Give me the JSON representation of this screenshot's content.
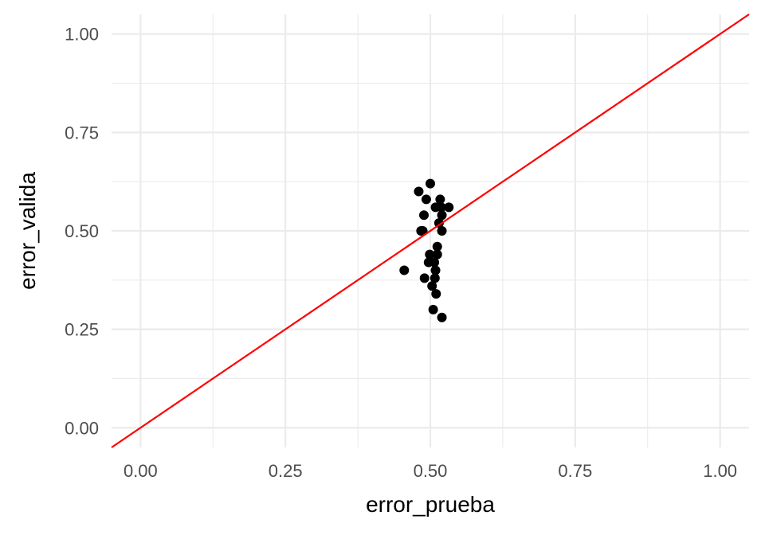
{
  "chart_data": {
    "type": "scatter",
    "title": "",
    "xlabel": "error_prueba",
    "ylabel": "error_valida",
    "xlim": [
      -0.05,
      1.05
    ],
    "ylim": [
      -0.05,
      1.05
    ],
    "x_ticks": [
      0.0,
      0.25,
      0.5,
      0.75,
      1.0
    ],
    "y_ticks": [
      0.0,
      0.25,
      0.5,
      0.75,
      1.0
    ],
    "x_tick_labels": [
      "0.00",
      "0.25",
      "0.50",
      "0.75",
      "1.00"
    ],
    "y_tick_labels": [
      "0.00",
      "0.25",
      "0.50",
      "0.75",
      "1.00"
    ],
    "grid": true,
    "points": [
      {
        "x": 0.5,
        "y": 0.62
      },
      {
        "x": 0.48,
        "y": 0.6
      },
      {
        "x": 0.493,
        "y": 0.58
      },
      {
        "x": 0.517,
        "y": 0.58
      },
      {
        "x": 0.509,
        "y": 0.56
      },
      {
        "x": 0.519,
        "y": 0.56
      },
      {
        "x": 0.532,
        "y": 0.56
      },
      {
        "x": 0.489,
        "y": 0.54
      },
      {
        "x": 0.52,
        "y": 0.54
      },
      {
        "x": 0.515,
        "y": 0.52
      },
      {
        "x": 0.484,
        "y": 0.5
      },
      {
        "x": 0.487,
        "y": 0.5
      },
      {
        "x": 0.52,
        "y": 0.5
      },
      {
        "x": 0.512,
        "y": 0.46
      },
      {
        "x": 0.499,
        "y": 0.44
      },
      {
        "x": 0.512,
        "y": 0.44
      },
      {
        "x": 0.497,
        "y": 0.42
      },
      {
        "x": 0.507,
        "y": 0.42
      },
      {
        "x": 0.455,
        "y": 0.4
      },
      {
        "x": 0.509,
        "y": 0.4
      },
      {
        "x": 0.49,
        "y": 0.38
      },
      {
        "x": 0.508,
        "y": 0.38
      },
      {
        "x": 0.503,
        "y": 0.36
      },
      {
        "x": 0.51,
        "y": 0.34
      },
      {
        "x": 0.505,
        "y": 0.3
      },
      {
        "x": 0.52,
        "y": 0.28
      }
    ],
    "reference_line": {
      "slope": 1,
      "intercept": 0,
      "color": "#ff0000"
    },
    "point_color": "#000000",
    "grid_color": "#ebebeb"
  }
}
